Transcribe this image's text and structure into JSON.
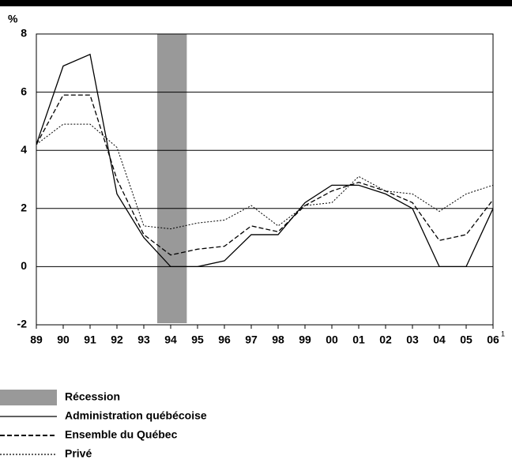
{
  "chart_data": {
    "type": "line",
    "y_unit": "%",
    "categories": [
      "89",
      "90",
      "91",
      "92",
      "93",
      "94",
      "95",
      "96",
      "97",
      "98",
      "99",
      "00",
      "01",
      "02",
      "03",
      "04",
      "05",
      "06"
    ],
    "last_category_note": "1",
    "ylim": [
      -2,
      8
    ],
    "yticks": [
      -2,
      0,
      2,
      4,
      6,
      8
    ],
    "grid": true,
    "recession": {
      "name": "Récession",
      "color": "#999999",
      "x_start": 4.5,
      "x_end": 5.6
    },
    "series": [
      {
        "name": "Administration québécoise",
        "color": "#000000",
        "dash": "solid",
        "values": [
          4.2,
          6.9,
          7.3,
          2.5,
          1.0,
          0,
          0,
          0.2,
          1.1,
          1.1,
          2.2,
          2.8,
          2.8,
          2.5,
          2.0,
          0,
          0,
          2.0
        ]
      },
      {
        "name": "Ensemble du Québec",
        "color": "#000000",
        "dash": "dashed",
        "values": [
          4.2,
          5.9,
          5.9,
          3.0,
          1.1,
          0.4,
          0.6,
          0.7,
          1.4,
          1.2,
          2.1,
          2.6,
          2.9,
          2.6,
          2.2,
          0.9,
          1.1,
          2.3
        ]
      },
      {
        "name": "Privé",
        "color": "#000000",
        "dash": "dotted",
        "values": [
          4.2,
          4.9,
          4.9,
          4.1,
          1.4,
          1.3,
          1.5,
          1.6,
          2.1,
          1.4,
          2.1,
          2.2,
          3.1,
          2.6,
          2.5,
          1.9,
          2.5,
          2.8
        ]
      }
    ]
  }
}
